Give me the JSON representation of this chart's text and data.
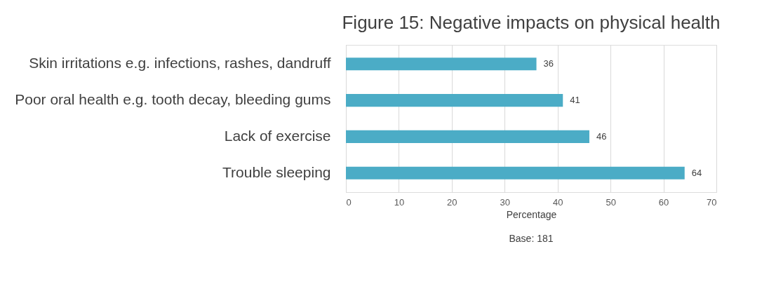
{
  "chart_data": {
    "type": "bar",
    "orientation": "horizontal",
    "title": "Figure 15: Negative impacts on physical health",
    "categories": [
      "Skin irritations e.g. infections, rashes, dandruff",
      "Poor oral health e.g. tooth decay, bleeding gums",
      "Lack of exercise",
      "Trouble sleeping"
    ],
    "values": [
      36,
      41,
      46,
      64
    ],
    "color": "#4bacc6",
    "xlim": [
      0,
      70
    ],
    "xticks": [
      0,
      10,
      20,
      30,
      40,
      50,
      60,
      70
    ],
    "grid": "x",
    "data_labels": true,
    "xlabel": "Percentage",
    "annotations": [
      "Base: 181"
    ]
  }
}
